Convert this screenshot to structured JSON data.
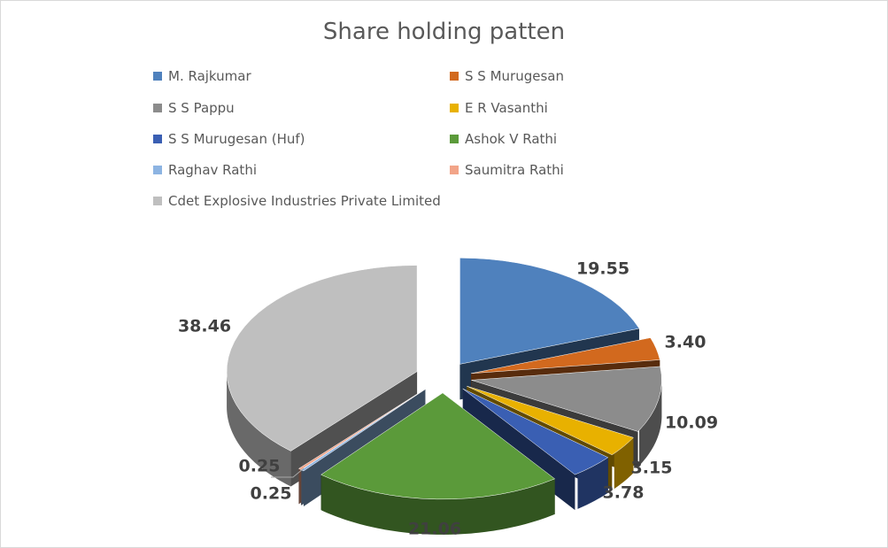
{
  "chart_data": {
    "type": "pie",
    "title": "Share holding patten",
    "legend_position": "top",
    "categories": [
      "M. Rajkumar",
      "S S Murugesan",
      "S S Pappu",
      "E R Vasanthi",
      "S S Murugesan (Huf)",
      "Ashok V Rathi",
      "Raghav Rathi",
      "Saumitra Rathi",
      "Cdet Explosive Industries Private Limited"
    ],
    "values": [
      19.55,
      3.4,
      10.09,
      3.15,
      3.78,
      21.06,
      0.25,
      0.25,
      38.46
    ],
    "data_labels": [
      "19.55",
      "3.40",
      "10.09",
      "3.15",
      "3.78",
      "21.06",
      "0.25",
      "0.25",
      "38.46"
    ],
    "colors": [
      "#4f81bd",
      "#d2691e",
      "#8c8c8c",
      "#e8b100",
      "#3a5fb3",
      "#5b9a3a",
      "#8db4e2",
      "#f2a488",
      "#bfbfbf"
    ],
    "exploded": true,
    "three_d": true
  }
}
